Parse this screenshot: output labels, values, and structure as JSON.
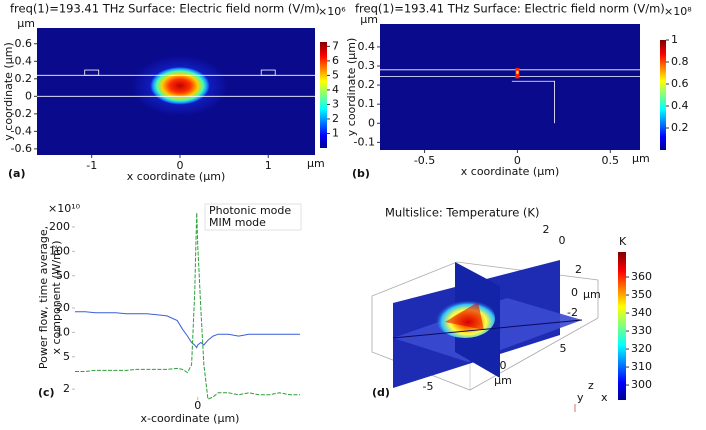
{
  "chart_data": [
    {
      "type": "heatmap",
      "panel": "(a)",
      "title": "freq(1)=193.41 THz Surface: Electric field norm (V/m)",
      "xlabel": "x coordinate (μm)",
      "ylabel": "y coordinate (μm)",
      "x_unit": "μm",
      "y_unit": "μm",
      "xlim": [
        -1.62,
        1.53
      ],
      "xticks": [
        -1,
        0,
        1
      ],
      "ylim": [
        -0.67,
        0.78
      ],
      "yticks": [
        -0.6,
        -0.4,
        -0.2,
        0,
        0.2,
        0.4,
        0.6
      ],
      "clim": [
        0,
        7.3
      ],
      "cticks": [
        1,
        2,
        3,
        4,
        5,
        6,
        7
      ],
      "cmultiplier": "×10⁶"
    },
    {
      "type": "heatmap",
      "panel": "(b)",
      "title": "freq(1)=193.41 THz Surface: Electric field norm (V/m)",
      "xlabel": "x coordinate (μm)",
      "ylabel": "y coordinate (μm)",
      "x_unit": "μm",
      "y_unit": "μm",
      "xlim": [
        -0.74,
        0.66
      ],
      "xticks": [
        -0.5,
        0,
        0.5
      ],
      "ylim": [
        -0.14,
        0.52
      ],
      "yticks": [
        -0.1,
        0,
        0.1,
        0.2,
        0.3,
        0.4
      ],
      "clim": [
        0,
        1
      ],
      "cticks": [
        0.2,
        0.4,
        0.6,
        0.8,
        1
      ],
      "cmultiplier": "×10⁸"
    },
    {
      "type": "line",
      "panel": "(c)",
      "xlabel": "x-coordinate (μm)",
      "ylabel": [
        "Power flow, time average,",
        "x component (W/m²)"
      ],
      "ymultiplier": "×10¹⁰",
      "log_y": true,
      "legend": "top-right",
      "xlim": [
        -1.2,
        1.0
      ],
      "xticks": [
        0
      ],
      "ylim": [
        1.69,
        430
      ],
      "yticks": [
        2,
        5,
        10,
        20,
        50,
        100,
        200
      ],
      "x": [
        -1.2,
        -1.1,
        -1.0,
        -0.9,
        -0.8,
        -0.7,
        -0.6,
        -0.5,
        -0.4,
        -0.3,
        -0.2,
        -0.15,
        -0.1,
        -0.06,
        -0.03,
        -0.01,
        0,
        0.03,
        0.06,
        0.1,
        0.15,
        0.2,
        0.3,
        0.4,
        0.5,
        0.6,
        0.7,
        0.8,
        0.9,
        1.0
      ],
      "series": [
        {
          "name": "Photonic mode",
          "color": "#3a5fd9",
          "values": [
            18,
            18,
            17.5,
            17.5,
            17.5,
            17,
            17,
            17,
            16.5,
            16,
            14,
            11,
            9,
            7.5,
            7,
            6.5,
            7,
            7.5,
            7,
            8,
            9,
            9.5,
            9.5,
            9,
            9.5,
            9.5,
            9.5,
            9.5,
            9.5,
            9.5
          ]
        },
        {
          "name": "MIM mode",
          "color": "#2e9e3a",
          "values": [
            3.3,
            3.3,
            3.4,
            3.4,
            3.4,
            3.4,
            3.5,
            3.5,
            3.5,
            3.5,
            3.6,
            3.5,
            3.2,
            4,
            30,
            300,
            120,
            20,
            4,
            1.5,
            1.6,
            1.8,
            1.8,
            1.7,
            1.8,
            1.7,
            1.7,
            1.8,
            1.7,
            1.7
          ]
        }
      ]
    },
    {
      "type": "slice3d",
      "panel": "(d)",
      "title": "Multislice: Temperature (K)",
      "yticks": [
        2,
        0
      ],
      "zticks": [
        2,
        0,
        -2
      ],
      "xticks": [
        5,
        0,
        -5
      ],
      "z_unit": "μm",
      "x_unit": "μm",
      "triad": [
        "y",
        "z",
        "x"
      ],
      "clim": [
        291.7,
        373.9
      ],
      "cticks": [
        300,
        310,
        320,
        330,
        340,
        350,
        360
      ],
      "cunit": "K"
    }
  ]
}
